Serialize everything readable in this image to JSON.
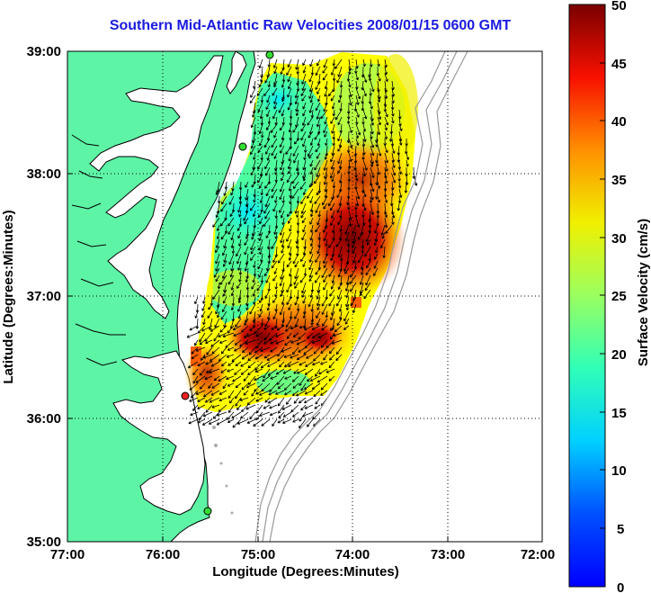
{
  "title": "Southern Mid-Atlantic Raw Velocities 2008/01/15 0600 GMT",
  "x_axis": {
    "label": "Longitude (Degrees:Minutes)",
    "ticks": [
      "77:00",
      "76:00",
      "75:00",
      "74:00",
      "73:00",
      "72:00"
    ]
  },
  "y_axis": {
    "label": "Latitude (Degrees:Minutes)",
    "ticks": [
      "39:00",
      "38:00",
      "37:00",
      "36:00",
      "35:00"
    ]
  },
  "colorbar": {
    "label": "Surface Velocity (cm/s)",
    "ticks": [
      "50",
      "45",
      "40",
      "35",
      "30",
      "25",
      "20",
      "15",
      "10",
      "5",
      "0"
    ],
    "min": 0,
    "max": 50,
    "colormap": "jet"
  },
  "map_extent": {
    "lon_min": -77,
    "lon_max": -72,
    "lat_min": 35,
    "lat_max": 39
  },
  "colors": {
    "land": "#5ef4a6",
    "coastline": "#000000",
    "bathymetry": "#999999",
    "title_text": "#1a1ae0",
    "site_marker_green": "#33dd33",
    "site_marker_red": "#ee2222"
  }
}
